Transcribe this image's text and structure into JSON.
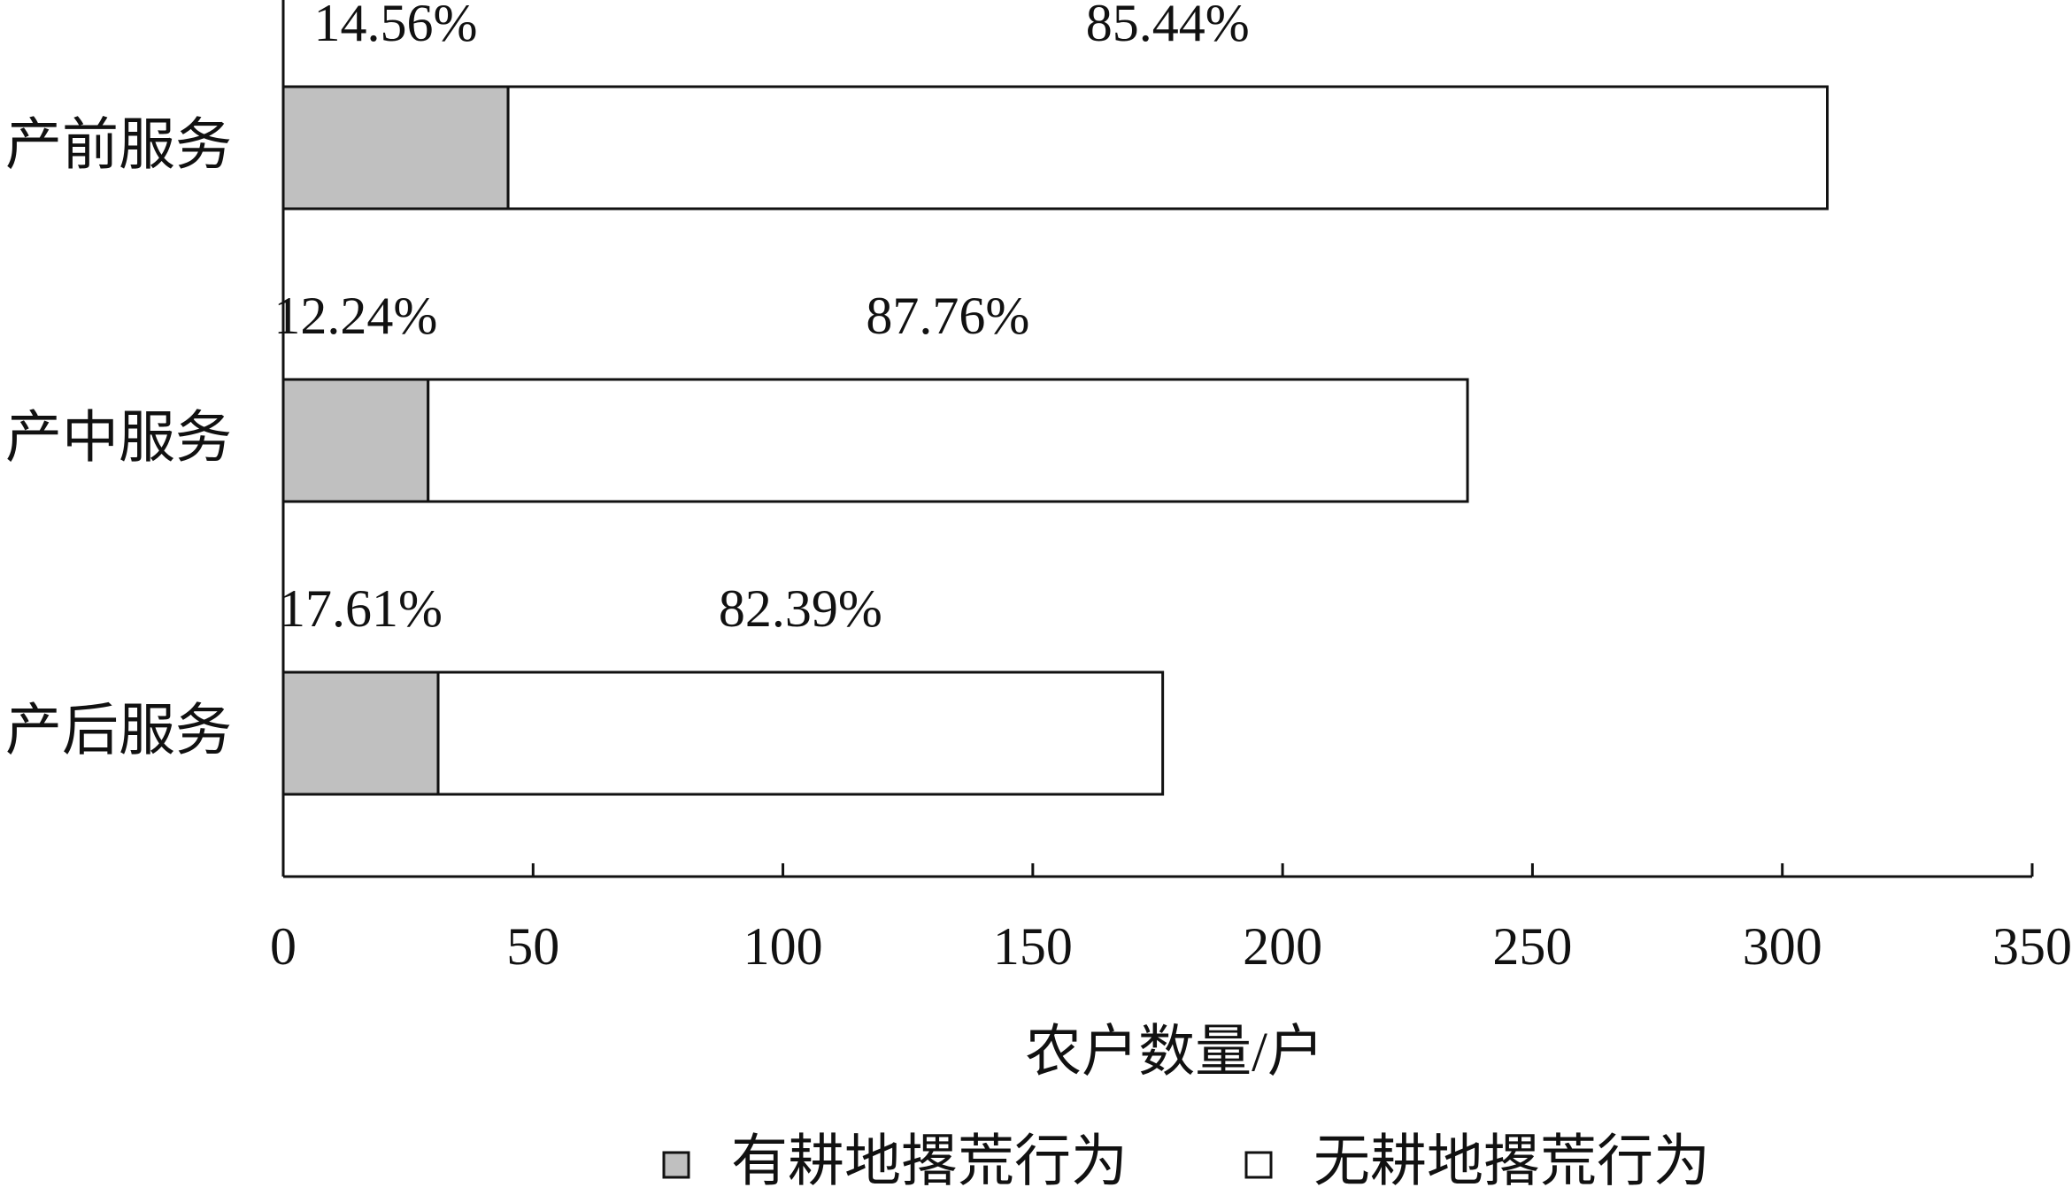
{
  "chart_data": {
    "type": "stacked-barh",
    "categories": [
      "产前服务",
      "产中服务",
      "产后服务"
    ],
    "series": [
      {
        "name": "有耕地撂荒行为",
        "color": "#c0c0c0",
        "values": [
          45,
          29,
          31
        ],
        "labels": [
          "14.56%",
          "12.24%",
          "17.61%"
        ]
      },
      {
        "name": "无耕地撂荒行为",
        "color": "#ffffff",
        "values": [
          264,
          208,
          145
        ],
        "labels": [
          "85.44%",
          "87.76%",
          "82.39%"
        ]
      }
    ],
    "xlabel": "农户数量/户",
    "xlim": [
      0,
      350
    ],
    "xticks": [
      0,
      50,
      100,
      150,
      200,
      250,
      300,
      350
    ],
    "legend": "bottom"
  }
}
